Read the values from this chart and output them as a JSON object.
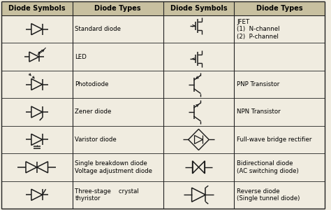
{
  "col_headers": [
    "Diode Symbols",
    "Diode Types",
    "Diode Symbols",
    "Diode Types"
  ],
  "bg_color": "#f0ece0",
  "header_bg": "#c8c0a0",
  "line_color": "#222222",
  "text_color": "#000000",
  "header_fontsize": 7.0,
  "cell_fontsize": 6.2,
  "row_labels_left": [
    "Standard diode",
    "LED",
    "Photodiode",
    "Zener diode",
    "Varistor diode",
    "Single breakdown diode\nVoltage adjustment diode",
    "Three-stage    crystal\nthyristor"
  ],
  "row_labels_right": [
    "JFET\n(1)  N-channel\n(2)  P-channel",
    "",
    "PNP Transistor",
    "NPN Transistor",
    "Full-wave bridge rectifier",
    "Bidirectional diode\n(AC switching diode)",
    "Reverse diode\n(Single tunnel diode)"
  ],
  "sym_color": "#1a1a1a",
  "sym_lw": 1.1
}
